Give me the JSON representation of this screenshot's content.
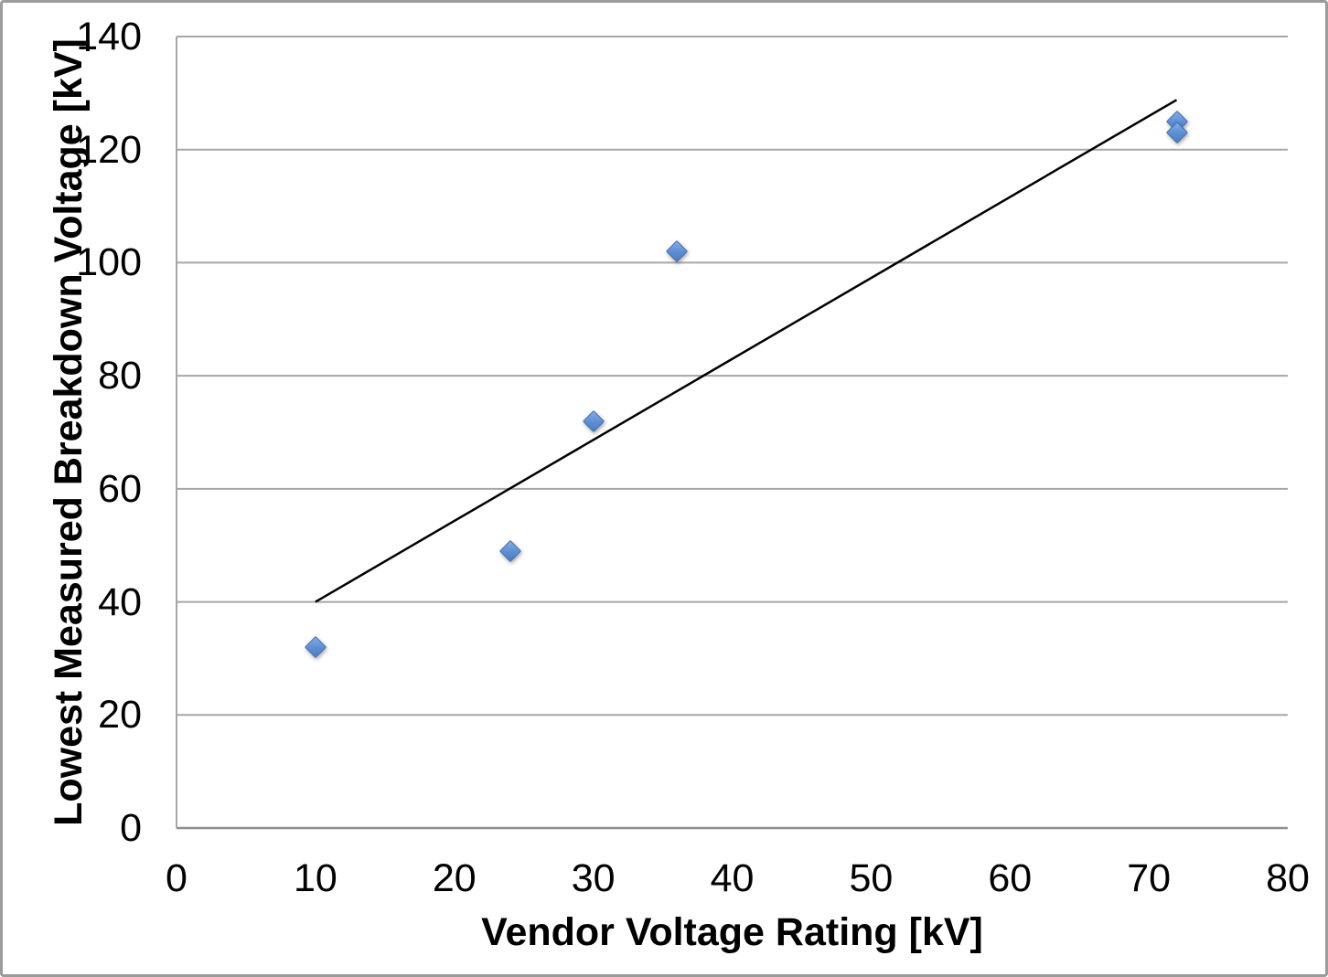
{
  "chart_data": {
    "type": "scatter",
    "title": "",
    "xlabel": "Vendor Voltage Rating [kV]",
    "ylabel": "Lowest Measured Breakdown Voltage [kV]",
    "xlim": [
      0,
      80
    ],
    "ylim": [
      0,
      140
    ],
    "x_ticks": [
      0,
      10,
      20,
      30,
      40,
      50,
      60,
      70,
      80
    ],
    "y_ticks": [
      0,
      20,
      40,
      60,
      80,
      100,
      120,
      140
    ],
    "grid": "horizontal",
    "legend": "none",
    "series": [
      {
        "marker": "diamond",
        "marker_fill": "#5E90D6",
        "marker_border": "#3E6CB0",
        "points": [
          {
            "x": 10,
            "y": 32
          },
          {
            "x": 24,
            "y": 49
          },
          {
            "x": 30,
            "y": 72
          },
          {
            "x": 36,
            "y": 102
          },
          {
            "x": 72,
            "y": 125
          },
          {
            "x": 72,
            "y": 123
          }
        ]
      }
    ],
    "trendline": {
      "x1": 10,
      "y1": 40,
      "x2": 72,
      "y2": 128.8,
      "color": "#000000"
    },
    "gridline_color": "#A6A6A6",
    "axis_line_color": "#8F8F8F",
    "text_color": "#000000",
    "background_color": "#FFFFFF",
    "frame_border_color": "#9B9B9B"
  }
}
